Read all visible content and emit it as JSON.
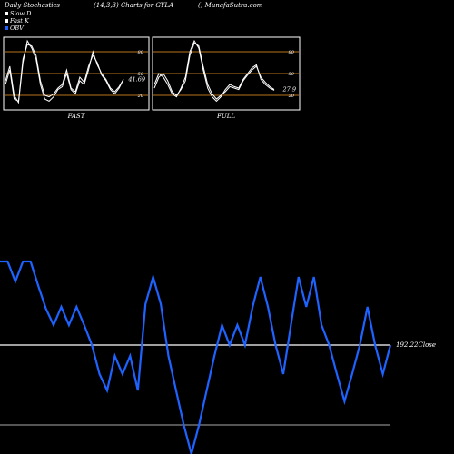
{
  "header": {
    "title_left": "Daily Stochastics",
    "title_mid": "(14,3,3) Charts for GYLA",
    "title_right": "() MunafaSutra.com"
  },
  "legend": [
    {
      "label": "Slow D",
      "color": "#ffffff"
    },
    {
      "label": "Fast K",
      "color": "#ffffff"
    },
    {
      "label": "OBV",
      "color": "#1e63ff"
    }
  ],
  "colors": {
    "background": "#000000",
    "stoch_line": "#ffffff",
    "level_line": "#b8741a",
    "obv_line": "#1e63ff",
    "close_line": "#ffffff"
  },
  "chart_data": [
    {
      "type": "line",
      "panel": "FAST",
      "label": "FAST",
      "ylim": [
        0,
        100
      ],
      "levels": [
        20,
        50,
        80
      ],
      "tick_labels": [
        "80",
        "50",
        "20"
      ],
      "value_label": "41.69",
      "series": [
        {
          "values": [
            35,
            55,
            15,
            12,
            70,
            90,
            88,
            75,
            40,
            20,
            18,
            22,
            30,
            35,
            55,
            30,
            25,
            45,
            38,
            60,
            75,
            65,
            48,
            40,
            28,
            22,
            30,
            42
          ]
        },
        {
          "values": [
            40,
            60,
            20,
            10,
            65,
            95,
            85,
            70,
            35,
            15,
            12,
            18,
            28,
            32,
            50,
            28,
            22,
            40,
            35,
            55,
            80,
            62,
            50,
            42,
            30,
            25,
            32,
            42
          ]
        }
      ]
    },
    {
      "type": "line",
      "panel": "FULL",
      "label": "FULL",
      "ylim": [
        0,
        100
      ],
      "levels": [
        20,
        50,
        80
      ],
      "tick_labels": [
        "80",
        "50",
        "20"
      ],
      "value_label": "27.9",
      "series": [
        {
          "values": [
            30,
            45,
            50,
            40,
            25,
            20,
            28,
            40,
            75,
            92,
            88,
            60,
            35,
            22,
            15,
            20,
            25,
            32,
            30,
            28,
            40,
            48,
            55,
            60,
            45,
            38,
            32,
            28
          ]
        },
        {
          "values": [
            35,
            50,
            45,
            35,
            22,
            18,
            30,
            45,
            80,
            95,
            85,
            55,
            30,
            18,
            12,
            18,
            28,
            35,
            32,
            30,
            42,
            50,
            58,
            62,
            42,
            35,
            30,
            27
          ]
        }
      ]
    },
    {
      "type": "line",
      "panel": "OBV",
      "close_label": "192.22Close",
      "series": [
        {
          "name": "OBV",
          "values": [
            92,
            92,
            70,
            92,
            92,
            65,
            40,
            22,
            42,
            22,
            42,
            22,
            0,
            -32,
            -50,
            -12,
            -32,
            -12,
            -50,
            45,
            75,
            45,
            -12,
            -50,
            -88,
            -120,
            -88,
            -50,
            -12,
            22,
            0,
            22,
            0,
            42,
            75,
            42,
            0,
            -32,
            22,
            75,
            42,
            75,
            22,
            0,
            -32,
            -62,
            -32,
            0,
            42,
            0,
            -32,
            0
          ]
        }
      ]
    }
  ]
}
